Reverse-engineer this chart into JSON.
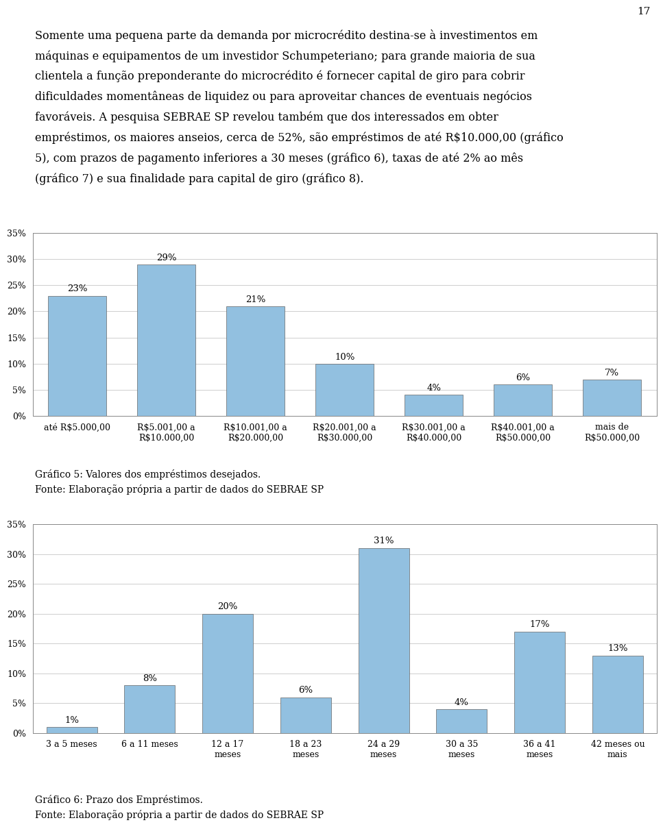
{
  "page_number": "17",
  "paragraph_lines": [
    "Somente uma pequena parte da demanda por microcrédito destina-se à investimentos em",
    "máquinas e equipamentos de um investidor Schumpeteriano; para grande maioria de sua",
    "clientela a função preponderante do microcrédito é fornecer capital de giro para cobrir",
    "dificuldades momentâneas de liquidez ou para aproveitar chances de eventuais negócios",
    "favoráveis. A pesquisa SEBRAE SP revelou também que dos interessados em obter",
    "empréstimos, os maiores anseios, cerca de 52%, são empréstimos de até R$10.000,00 (gráfico",
    "5), com prazos de pagamento inferiores a 30 meses (gráfico 6), taxas de até 2% ao mês",
    "(gráfico 7) e sua finalidade para capital de giro (gráfico 8)."
  ],
  "chart1": {
    "categories": [
      "até R$5.000,00",
      "R$5.001,00 a\nR$10.000,00",
      "R$10.001,00 a\nR$20.000,00",
      "R$20.001,00 a\nR$30.000,00",
      "R$30.001,00 a\nR$40.000,00",
      "R$40.001,00 a\nR$50.000,00",
      "mais de\nR$50.000,00"
    ],
    "values": [
      23,
      29,
      21,
      10,
      4,
      6,
      7
    ],
    "labels": [
      "23%",
      "29%",
      "21%",
      "10%",
      "4%",
      "6%",
      "7%"
    ],
    "bar_color": "#92c0e0",
    "ylim": [
      0,
      35
    ],
    "yticks": [
      0,
      5,
      10,
      15,
      20,
      25,
      30,
      35
    ],
    "ytick_labels": [
      "0%",
      "5%",
      "10%",
      "15%",
      "20%",
      "25%",
      "30%",
      "35%"
    ],
    "caption_line1": "Gráfico 5: Valores dos empréstimos desejados.",
    "caption_line2": "Fonte: Elaboração própria a partir de dados do SEBRAE SP"
  },
  "chart2": {
    "categories": [
      "3 a 5 meses",
      "6 a 11 meses",
      "12 a 17\nmeses",
      "18 a 23\nmeses",
      "24 a 29\nmeses",
      "30 a 35\nmeses",
      "36 a 41\nmeses",
      "42 meses ou\nmais"
    ],
    "values": [
      1,
      8,
      20,
      6,
      31,
      4,
      17,
      13
    ],
    "labels": [
      "1%",
      "8%",
      "20%",
      "6%",
      "31%",
      "4%",
      "17%",
      "13%"
    ],
    "bar_color": "#92c0e0",
    "ylim": [
      0,
      35
    ],
    "yticks": [
      0,
      5,
      10,
      15,
      20,
      25,
      30,
      35
    ],
    "ytick_labels": [
      "0%",
      "5%",
      "10%",
      "15%",
      "20%",
      "25%",
      "30%",
      "35%"
    ],
    "caption_line1": "Gráfico 6: Prazo dos Empréstimos.",
    "caption_line2": "Fonte: Elaboração própria a partir de dados do SEBRAE SP"
  },
  "bg_color": "#ffffff",
  "text_color": "#000000",
  "font_size_text": 11.5,
  "font_size_axis": 9,
  "font_size_label": 9.5,
  "font_size_caption": 10
}
